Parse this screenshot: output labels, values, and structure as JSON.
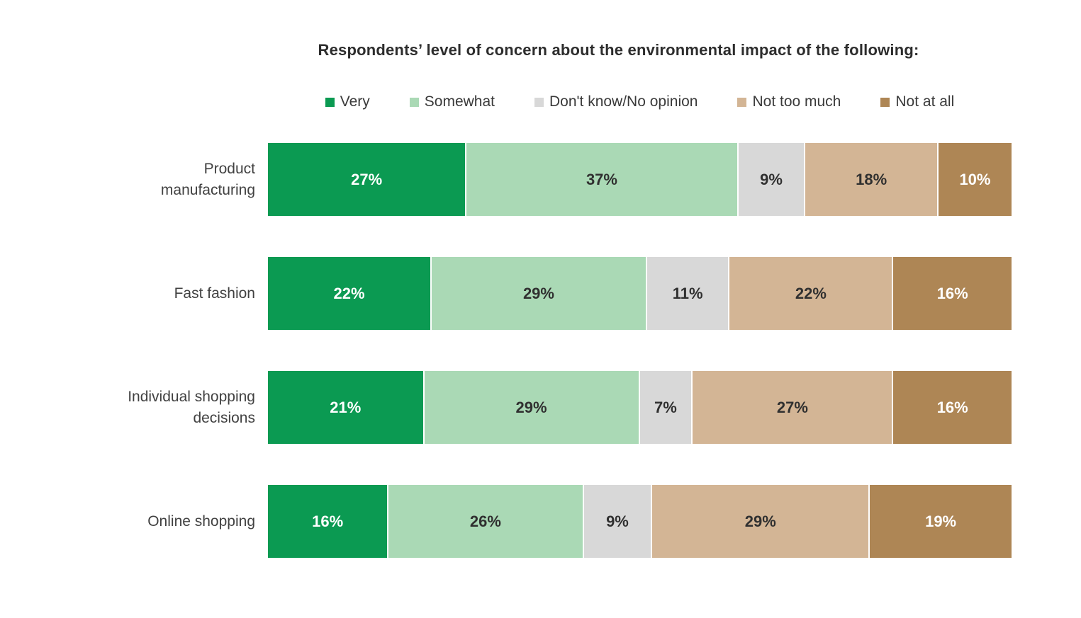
{
  "title": "Respondents’ level of concern about the environmental impact of the following:",
  "value_suffix": "%",
  "colors": {
    "background": "#ffffff",
    "title_text": "#2d2d2d",
    "label_text": "#414141",
    "dark_value_text": "#303030",
    "light_value_text": "#ffffff"
  },
  "chart_data": {
    "type": "bar",
    "orientation": "horizontal",
    "stacked": true,
    "grid": false,
    "legend_position": "top",
    "title": "Respondents’ level of concern about the environmental impact of the following:",
    "categories": [
      "Product manufacturing",
      "Fast fashion",
      "Individual shopping decisions",
      "Online shopping"
    ],
    "series": [
      {
        "name": "Very",
        "color": "#0b9a52",
        "text_color": "#ffffff",
        "values": [
          27,
          22,
          21,
          16
        ]
      },
      {
        "name": "Somewhat",
        "color": "#aad9b5",
        "text_color": "#303030",
        "values": [
          37,
          29,
          29,
          26
        ]
      },
      {
        "name": "Don't know/No opinion",
        "color": "#d8d8d8",
        "text_color": "#303030",
        "values": [
          9,
          11,
          7,
          9
        ]
      },
      {
        "name": "Not too much",
        "color": "#d3b595",
        "text_color": "#303030",
        "values": [
          18,
          22,
          27,
          29
        ]
      },
      {
        "name": "Not at all",
        "color": "#ae8655",
        "text_color": "#ffffff",
        "values": [
          10,
          16,
          16,
          19
        ]
      }
    ],
    "value_suffix": "%",
    "xlim": [
      0,
      100
    ]
  }
}
